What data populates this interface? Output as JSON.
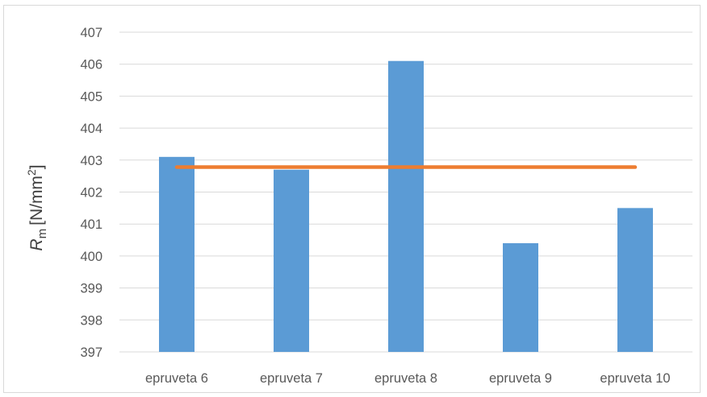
{
  "chart_data": {
    "type": "bar",
    "categories": [
      "epruveta 6",
      "epruveta 7",
      "epruveta 8",
      "epruveta 9",
      "epruveta 10"
    ],
    "series": [
      {
        "values": [
          403.1,
          402.7,
          406.1,
          400.4,
          401.5
        ],
        "color": "#5b9bd5"
      }
    ],
    "average_line": {
      "value": 402.78,
      "color": "#ed7d31"
    },
    "ylim": [
      397,
      407
    ],
    "yticks": [
      "397",
      "398",
      "399",
      "400",
      "401",
      "402",
      "403",
      "404",
      "405",
      "406",
      "407"
    ],
    "ylabel": {
      "symbol": "R",
      "subscript": "m",
      "unit": "[N/mm",
      "superscript": "2",
      "unit_end": "]"
    },
    "xlabel": "",
    "grid": true,
    "gridline_color": "#d9d9d9"
  }
}
